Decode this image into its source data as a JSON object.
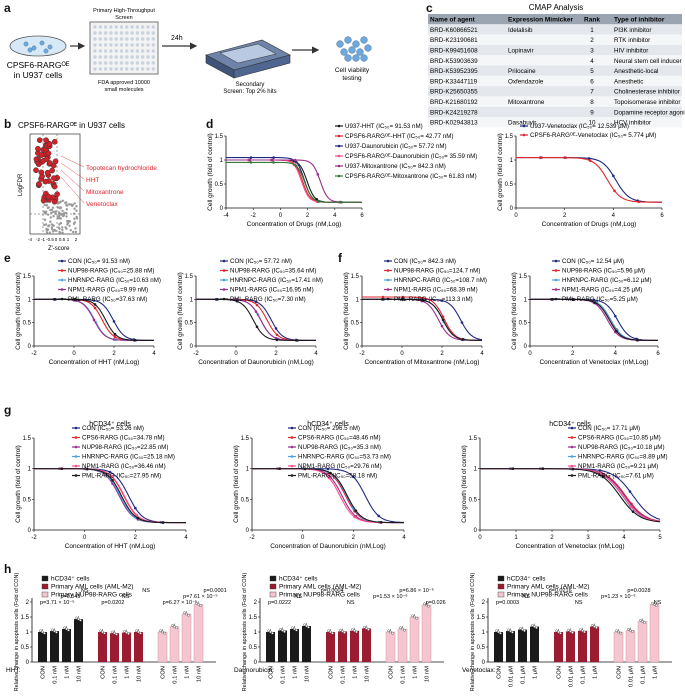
{
  "colors": {
    "black": "#1a1a1a",
    "navy": "#1f2a80",
    "red": "#e3242b",
    "purple": "#9b2d8f",
    "pink": "#ff4d8d",
    "green": "#2e7d32",
    "blue": "#2b4fc7",
    "lightblue": "#4aa3df",
    "maroon": "#9b1b30",
    "lightpink": "#f5c6d0",
    "cellblue": "#6fa8dc"
  },
  "panel_labels": [
    "a",
    "b",
    "c",
    "d",
    "e",
    "f",
    "g",
    "h"
  ],
  "panel_a": {
    "cell_label": "CPSF6-RARGᴼᴱ\nin U937 cells",
    "plate_label": "FDA approved 10000\nsmall molecules",
    "primary_screen": "Primary High-Throughput\nScreen",
    "arrow_label": "24h",
    "secondary_screen": "Secondary\nScreen: Top 2% hits",
    "viability": "Cell viability\ntesting"
  },
  "panel_b": {
    "title": "CPSF6-RARGᴼᴱ in U937 cells",
    "xlabel": "Z'-score",
    "ylabel": "LogFDR",
    "annotations": [
      "Topotecan hydrochloride",
      "HHT",
      "Mitoxantrone",
      "Venetoclax"
    ],
    "xticks": [
      "-4",
      "-2",
      "-1",
      "-0.5",
      "0",
      "0.5",
      "1",
      "2"
    ]
  },
  "panel_c": {
    "title": "CMAP Analysis",
    "headers": [
      "Name of agent",
      "Expression Mimicker",
      "Rank",
      "Type of inhibitor"
    ],
    "rows": [
      [
        "BRD-K60866521",
        "Idelalisib",
        "1",
        "PI3K inhibitor"
      ],
      [
        "BRD-K23190681",
        "",
        "2",
        "RTK inhibitor"
      ],
      [
        "BRD-K99451608",
        "Lopinavir",
        "3",
        "HIV inhibitor"
      ],
      [
        "BRD-K53903639",
        "",
        "4",
        "Neural stem cell inducer"
      ],
      [
        "BRD-K53952395",
        "Prilocaine",
        "5",
        "Anesthetic-local"
      ],
      [
        "BRD-K33447119",
        "Oxfendazole",
        "6",
        "Anesthetic"
      ],
      [
        "BRD-K25650355",
        "",
        "7",
        "Cholinesterase inhibitor"
      ],
      [
        "BRD-K21680192",
        "Mitoxantrone",
        "8",
        "Topoisomerase inhibitor"
      ],
      [
        "BRD-K24219278",
        "",
        "9",
        "Dopamine receptor agonist"
      ],
      [
        "BRD-K02943813",
        "Dasabuvir",
        "10",
        "HCV inhibitor"
      ]
    ]
  },
  "chart_data": [
    {
      "id": "d1",
      "type": "line",
      "xlabel": "Concentration of Drugs (nM,Log)",
      "ylabel": "Cell growth (fold of control)",
      "xlim": [
        -4,
        6
      ],
      "ylim": [
        0,
        1.5
      ],
      "xticks": [
        -4,
        -2,
        0,
        2,
        4,
        6
      ],
      "yticks": [
        0,
        0.5,
        1,
        1.5
      ],
      "series": [
        {
          "name": "U937-HHT (IC₅₀= 91.53 nM)",
          "color": "#1a1a1a",
          "ic50": 1.96,
          "top": 1.0
        },
        {
          "name": "CPSF6-RARGᴼᴱ-HHT (IC₅₀= 42.77 nM)",
          "color": "#e3242b",
          "ic50": 1.63,
          "top": 1.0
        },
        {
          "name": "U937-Daunorubicin (IC₅₀= 57.72 nM)",
          "color": "#1f2a80",
          "ic50": 1.76,
          "top": 1.05
        },
        {
          "name": "CPSF6-RARGᴼᴱ-Daunorubicin (IC₅₀= 35.59 nM)",
          "color": "#ff4d8d",
          "ic50": 1.55,
          "top": 1.0
        },
        {
          "name": "U937-Mitoxantrone (IC₅₀= 842.3 nM)",
          "color": "#9b2d8f",
          "ic50": 2.93,
          "top": 1.0
        },
        {
          "name": "CPSF6-RARGᴼᴱ-Mitoxantrone (IC₅₀= 61.83 nM)",
          "color": "#2e7d32",
          "ic50": 1.79,
          "top": 0.95
        }
      ]
    },
    {
      "id": "d2",
      "type": "line",
      "xlabel": "Concentration of Drugs (nM,Log)",
      "ylabel": "Cell growth (fold of control)",
      "xlim": [
        0,
        6
      ],
      "ylim": [
        0,
        1.5
      ],
      "xticks": [
        0,
        2,
        4,
        6
      ],
      "yticks": [
        0,
        0.5,
        1,
        1.5
      ],
      "series": [
        {
          "name": "U937-Venetoclax (IC₅₀= 12.539 μM)",
          "color": "#1f2a80",
          "ic50": 4.1,
          "top": 1.05
        },
        {
          "name": "CPSF6-RARGᴼᴱ-Venetoclax (IC₅₀= 5.774 μM)",
          "color": "#e3242b",
          "ic50": 3.76,
          "top": 1.05
        }
      ]
    },
    {
      "id": "e1",
      "type": "line",
      "xlabel": "Concentration of HHT (nM,Log)",
      "ylabel": "Cell growth (fold of control)",
      "xlim": [
        -2,
        4
      ],
      "ylim": [
        0,
        1.5
      ],
      "xticks": [
        -2,
        0,
        2,
        4
      ],
      "yticks": [
        0,
        0.5,
        1,
        1.5
      ],
      "series": [
        {
          "name": "CON (IC₅₀= 91.53 nM)",
          "color": "#1f2a80",
          "ic50": 1.96,
          "top": 1.0
        },
        {
          "name": "NUP98-RARG (IC₅₀=25.88 nM)",
          "color": "#e3242b",
          "ic50": 1.41,
          "top": 1.0
        },
        {
          "name": "HNRNPC-RARG (IC₅₀=10.63 nM)",
          "color": "#4aa3df",
          "ic50": 1.03,
          "top": 1.0
        },
        {
          "name": "NPM1-RARG (IC₅₀=9.99 nM)",
          "color": "#9b2d8f",
          "ic50": 1.0,
          "top": 1.0
        },
        {
          "name": "PML-RARG (IC₅₀=37.63 nM)",
          "color": "#1a1a1a",
          "ic50": 1.58,
          "top": 1.0
        }
      ]
    },
    {
      "id": "e2",
      "type": "line",
      "xlabel": "Concentration of Daunorubicin (nM,Log)",
      "ylabel": "Cell growth (fold of control)",
      "xlim": [
        -2,
        4
      ],
      "ylim": [
        0,
        1.5
      ],
      "xticks": [
        -2,
        0,
        2,
        4
      ],
      "yticks": [
        0,
        0.5,
        1,
        1.5
      ],
      "series": [
        {
          "name": "CON (IC₅₀= 57.72 nM)",
          "color": "#1f2a80",
          "ic50": 1.76,
          "top": 1.0
        },
        {
          "name": "NUP98-RARG (IC₅₀=35.64 nM)",
          "color": "#e3242b",
          "ic50": 1.55,
          "top": 1.0
        },
        {
          "name": "HNRNPC-RARG (IC₅₀=17.41 nM)",
          "color": "#4aa3df",
          "ic50": 1.24,
          "top": 1.0
        },
        {
          "name": "NPM1-RARG (IC₅₀=16.95 nM)",
          "color": "#9b2d8f",
          "ic50": 1.23,
          "top": 1.0
        },
        {
          "name": "PML-RARG (IC₅₀=7.30 nM)",
          "color": "#1a1a1a",
          "ic50": 0.86,
          "top": 1.0
        }
      ]
    },
    {
      "id": "f1",
      "type": "line",
      "xlabel": "Concentration of Mitoxantrone (nM,Log)",
      "ylabel": "Cell growth (fold of control)",
      "xlim": [
        -2,
        4
      ],
      "ylim": [
        0,
        1.5
      ],
      "xticks": [
        -2,
        0,
        2,
        4
      ],
      "yticks": [
        0,
        0.5,
        1,
        1.5
      ],
      "series": [
        {
          "name": "CON (IC₅₀= 842.3 nM)",
          "color": "#1f2a80",
          "ic50": 2.93,
          "top": 1.0
        },
        {
          "name": "NUP98-RARG (IC₅₀=124.7 nM)",
          "color": "#e3242b",
          "ic50": 2.1,
          "top": 1.05
        },
        {
          "name": "HNRNPC-RARG (IC₅₀=108.7 nM)",
          "color": "#4aa3df",
          "ic50": 2.04,
          "top": 1.0
        },
        {
          "name": "NPM1-RARG (IC₅₀=68.39 nM)",
          "color": "#9b2d8f",
          "ic50": 1.83,
          "top": 1.0
        },
        {
          "name": "PML-RARG (IC₅₀=113.3 nM)",
          "color": "#1a1a1a",
          "ic50": 2.05,
          "top": 1.0
        }
      ]
    },
    {
      "id": "f2",
      "type": "line",
      "xlabel": "Concentration of Venetoclax (nM,Log)",
      "ylabel": "Cell growth (fold of control)",
      "xlim": [
        0,
        6
      ],
      "ylim": [
        0,
        1.5
      ],
      "xticks": [
        0,
        2,
        4,
        6
      ],
      "yticks": [
        0,
        0.5,
        1,
        1.5
      ],
      "series": [
        {
          "name": "CON (IC₅₀= 12.54 μM)",
          "color": "#1f2a80",
          "ic50": 4.1,
          "top": 1.0
        },
        {
          "name": "NUP98-RARG (IC₅₀=5.96 μM)",
          "color": "#e3242b",
          "ic50": 3.78,
          "top": 1.0
        },
        {
          "name": "HNRNPC-RARG (IC₅₀=6.12 μM)",
          "color": "#4aa3df",
          "ic50": 3.79,
          "top": 1.0
        },
        {
          "name": "NPM1-RARG (IC₅₀=4.25 μM)",
          "color": "#9b2d8f",
          "ic50": 3.63,
          "top": 1.0
        },
        {
          "name": "PML-RARG (IC₅₀=5.25 μM)",
          "color": "#1a1a1a",
          "ic50": 3.72,
          "top": 1.0
        }
      ]
    },
    {
      "id": "g1",
      "type": "line",
      "title": "hCD34⁺ cells",
      "xlabel": "Concentration of HHT (nM,Log)",
      "ylabel": "Cell growth (fold of control)",
      "xlim": [
        -2,
        4
      ],
      "ylim": [
        0,
        1.5
      ],
      "xticks": [
        -2,
        0,
        2,
        4
      ],
      "yticks": [
        0,
        0.5,
        1,
        1.5
      ],
      "series": [
        {
          "name": "CON (IC₅₀= 53.26 nM)",
          "color": "#1f2a80",
          "ic50": 1.73,
          "top": 1.0
        },
        {
          "name": "CPS6-RARG (IC₅₀=34.78 nM)",
          "color": "#e3242b",
          "ic50": 1.54,
          "top": 1.0
        },
        {
          "name": "NUP98-RARG (IC₅₀=22.85 nM)",
          "color": "#9b2d8f",
          "ic50": 1.36,
          "top": 1.0
        },
        {
          "name": "HNRNPC-RARG (IC₅₀=25.18 nM)",
          "color": "#4aa3df",
          "ic50": 1.4,
          "top": 1.0
        },
        {
          "name": "NPM1-RARG (IC₅₀=36.46 nM)",
          "color": "#ff4d8d",
          "ic50": 1.56,
          "top": 1.0
        },
        {
          "name": "PML-RARG (IC₅₀=27.95 nM)",
          "color": "#1a1a1a",
          "ic50": 1.45,
          "top": 1.0
        }
      ]
    },
    {
      "id": "g2",
      "type": "line",
      "title": "hCD34⁺ cells",
      "xlabel": "Concentration of Daunorubicin (nM,Log)",
      "ylabel": "Cell growth (fold of control)",
      "xlim": [
        -2,
        4
      ],
      "ylim": [
        0,
        1.5
      ],
      "xticks": [
        -2,
        0,
        2,
        4
      ],
      "yticks": [
        0,
        0.5,
        1,
        1.5
      ],
      "series": [
        {
          "name": "CON (IC₅₀= 296.5 nM)",
          "color": "#1f2a80",
          "ic50": 2.47,
          "top": 1.0
        },
        {
          "name": "CPS6-RARG (IC₅₀=48.46 nM)",
          "color": "#e3242b",
          "ic50": 1.69,
          "top": 1.0
        },
        {
          "name": "NUP98-RARG (IC₅₀=35.3 nM)",
          "color": "#9b2d8f",
          "ic50": 1.55,
          "top": 1.0
        },
        {
          "name": "HNRNPC-RARG (IC₅₀=53.73 nM)",
          "color": "#4aa3df",
          "ic50": 1.73,
          "top": 1.0
        },
        {
          "name": "NPM1-RARG (IC₅₀=29.76 nM)",
          "color": "#ff4d8d",
          "ic50": 1.47,
          "top": 1.0
        },
        {
          "name": "PML-RARG (IC₅₀=58.18 nM)",
          "color": "#1a1a1a",
          "ic50": 1.76,
          "top": 1.0
        }
      ]
    },
    {
      "id": "g3",
      "type": "line",
      "title": "hCD34⁺ cells",
      "xlabel": "Concentration of Venetoclax (nM,Log)",
      "ylabel": "Cell growth (fold of control)",
      "xlim": [
        0,
        5
      ],
      "ylim": [
        0,
        1.5
      ],
      "xticks": [
        0,
        1,
        2,
        3,
        4,
        5
      ],
      "yticks": [
        0,
        0.5,
        1,
        1.5
      ],
      "series": [
        {
          "name": "CON (IC₅₀= 17.71 μM)",
          "color": "#1f2a80",
          "ic50": 4.25,
          "top": 1.0
        },
        {
          "name": "CPS6-RARG (IC₅₀=10.85 μM)",
          "color": "#e3242b",
          "ic50": 4.04,
          "top": 1.0
        },
        {
          "name": "NUP98-RARG (IC₅₀=10.18 μM)",
          "color": "#9b2d8f",
          "ic50": 4.01,
          "top": 1.0
        },
        {
          "name": "HNRNPC-RARG (IC₅₀=8.89 μM)",
          "color": "#4aa3df",
          "ic50": 3.95,
          "top": 1.0
        },
        {
          "name": "NPM1-RARG (IC₅₀=9.21 μM)",
          "color": "#ff4d8d",
          "ic50": 3.96,
          "top": 1.0
        },
        {
          "name": "PML-RARG (IC₅₀=7.61 μM)",
          "color": "#1a1a1a",
          "ic50": 3.88,
          "top": 1.0
        }
      ]
    },
    {
      "id": "h1",
      "type": "bar",
      "drug": "HHT:",
      "ylabel": "Relative change in apoptosis cells (Fold of CON)",
      "ylim": [
        0,
        2
      ],
      "yticks": [
        0,
        0.5,
        1,
        1.5,
        2
      ],
      "legend": [
        "hCD34⁺ cells",
        "Primary AML cells (AML-M2)",
        "Primary NUP98-RARG cells"
      ],
      "groups": [
        {
          "color": "#1a1a1a",
          "categories": [
            "CON",
            "0.1 nM",
            "1 nM",
            "10 nM"
          ],
          "values": [
            1.0,
            1.03,
            1.1,
            1.43
          ]
        },
        {
          "color": "#9b1b30",
          "categories": [
            "CON",
            "0.1 nM",
            "1 nM",
            "10 nM"
          ],
          "values": [
            1.0,
            0.96,
            0.98,
            1.0
          ]
        },
        {
          "color": "#f5c6d0",
          "categories": [
            "CON",
            "0.1 nM",
            "1 nM",
            "10 nM"
          ],
          "values": [
            1.0,
            1.18,
            1.6,
            1.92
          ]
        }
      ],
      "annotations": [
        "p=3.71 × 10⁻⁵",
        "p=0.045",
        "NS",
        "p=0.0202",
        "NS",
        "NS",
        "p=6.27 × 10⁻⁶",
        "p=7.61 × 10⁻⁵",
        "p=0.0001"
      ]
    },
    {
      "id": "h2",
      "type": "bar",
      "drug": "Daunorubicin:",
      "ylabel": "Relative change in apoptosis cells (Fold of CON)",
      "ylim": [
        0,
        2
      ],
      "yticks": [
        0,
        0.5,
        1,
        1.5,
        2
      ],
      "legend": [
        "hCD34⁺ cells",
        "Primary AML cells (AML-M2)",
        "Primary NUP98-RARG cells"
      ],
      "groups": [
        {
          "color": "#1a1a1a",
          "categories": [
            "CON",
            "0.1 nM",
            "1 nM",
            "10 nM"
          ],
          "values": [
            1.0,
            1.05,
            1.1,
            1.2
          ]
        },
        {
          "color": "#9b1b30",
          "categories": [
            "CON",
            "0.1 nM",
            "1 nM",
            "10 nM"
          ],
          "values": [
            1.0,
            1.02,
            1.04,
            1.12
          ]
        },
        {
          "color": "#f5c6d0",
          "categories": [
            "CON",
            "0.1 nM",
            "1 nM",
            "10 nM"
          ],
          "values": [
            1.0,
            1.1,
            1.5,
            1.9
          ]
        }
      ],
      "annotations": [
        "p=0.0222",
        "NS",
        "p=0.0004",
        "NS",
        "p=1.53 × 10⁻⁶",
        "p=6.86 × 10⁻⁵",
        "p=0.026"
      ]
    },
    {
      "id": "h3",
      "type": "bar",
      "drug": "Venetoclax:",
      "ylabel": "Relative change in apoptosis cells (Fold of CON)",
      "ylim": [
        0,
        2
      ],
      "yticks": [
        0,
        0.5,
        1,
        1.5,
        2
      ],
      "legend": [
        "hCD34⁺ cells",
        "Primary AML cells (AML-M2)",
        "Primary NUP98-RARG cells"
      ],
      "groups": [
        {
          "color": "#1a1a1a",
          "categories": [
            "CON",
            "0.01 μM",
            "0.1 μM",
            "1 μM"
          ],
          "values": [
            1.0,
            1.03,
            1.08,
            1.18
          ]
        },
        {
          "color": "#9b1b30",
          "categories": [
            "CON",
            "0.01 μM",
            "0.1 μM",
            "1 μM"
          ],
          "values": [
            1.0,
            1.02,
            1.04,
            1.18
          ]
        },
        {
          "color": "#f5c6d0",
          "categories": [
            "CON",
            "0.01 μM",
            "0.1 μM",
            "1 μM"
          ],
          "values": [
            1.0,
            1.05,
            1.35,
            1.92
          ]
        }
      ],
      "annotations": [
        "p=0.0003",
        "NS",
        "p=0.0216",
        "NS",
        "p=1.23 × 10⁻⁶",
        "p=0.0028",
        "NS"
      ]
    }
  ]
}
